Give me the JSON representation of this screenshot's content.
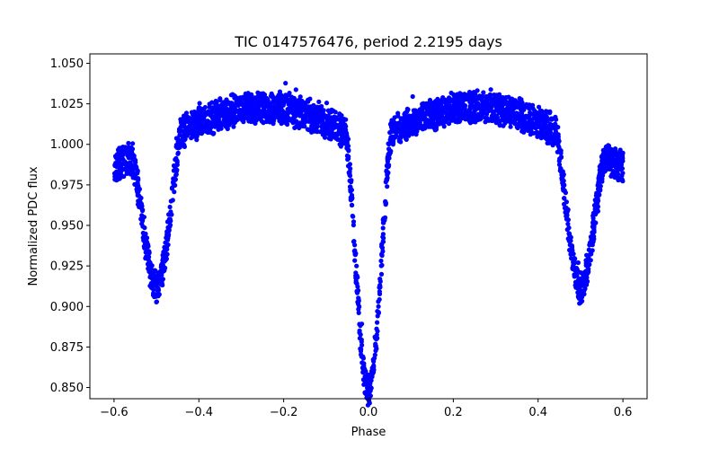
{
  "chart_data": {
    "type": "scatter",
    "title": "TIC 0147576476, period 2.2195 days",
    "xlabel": "Phase",
    "ylabel": "Normalized PDC flux",
    "xlim": [
      -0.657,
      0.657
    ],
    "ylim": [
      0.8431,
      1.0558
    ],
    "xticks": [
      -0.6,
      -0.4,
      -0.2,
      0.0,
      0.2,
      0.4,
      0.6
    ],
    "xtick_labels": [
      "−0.6",
      "−0.4",
      "−0.2",
      "0.0",
      "0.2",
      "0.4",
      "0.6"
    ],
    "yticks": [
      0.85,
      0.875,
      0.9,
      0.925,
      0.95,
      0.975,
      1.0,
      1.025,
      1.05
    ],
    "ytick_labels": [
      "0.850",
      "0.875",
      "0.900",
      "0.925",
      "0.950",
      "0.975",
      "1.000",
      "1.025",
      "1.050"
    ],
    "grid": false,
    "legend": "none",
    "marker_color": "#0000ff",
    "series": [
      {
        "name": "PDC flux",
        "phase_range": [
          -0.6,
          0.6
        ],
        "primary_eclipse": {
          "phase": 0.0,
          "min_flux": 0.849,
          "half_width": 0.055
        },
        "secondary_eclipse": {
          "phase": 0.5,
          "min_flux": 0.912,
          "half_width": 0.06
        },
        "out_of_eclipse_flux_range": [
          1.0,
          1.025
        ],
        "maxima_flux": [
          1.035,
          1.03
        ]
      }
    ],
    "notes": "Phase-folded light curve of an eclipsing binary; thousands of overlapping points forming a band ~0.02 thick."
  }
}
